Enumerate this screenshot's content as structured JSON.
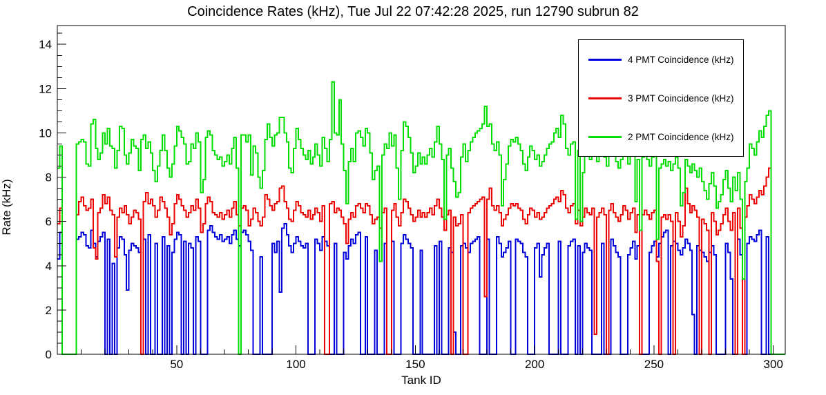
{
  "page": {
    "title": "Coincidence Rates (kHz), Tue Jul 22 07:42:28 2025, run 12790 subrun 82"
  },
  "chart_data": {
    "type": "line",
    "style": "step-histogram",
    "title": "Coincidence Rates (kHz), Tue Jul 22 07:42:28 2025, run 12790 subrun 82",
    "xlabel": "Tank ID",
    "ylabel": "Rate (kHz)",
    "xlim": [
      0,
      305
    ],
    "ylim": [
      0,
      14.85
    ],
    "x_major_ticks": [
      0,
      50,
      100,
      150,
      200,
      250,
      300
    ],
    "x_labeled_ticks": [
      50,
      100,
      150,
      200,
      250,
      300
    ],
    "x_minor_step": 10,
    "y_major_ticks": [
      0,
      2,
      4,
      6,
      8,
      10,
      12,
      14
    ],
    "y_minor_step": 0.5,
    "grid": false,
    "legend_position": "top-right",
    "frame_color": "#000000",
    "background_color": "#ffffff",
    "bin_start_x": 0,
    "bin_width": 1,
    "series": [
      {
        "name": "4 PMT Coincidence (kHz)",
        "color": "#0000dd",
        "values": [
          4.3,
          5.5,
          0,
          0,
          0,
          0,
          0,
          0,
          5.2,
          5.3,
          5.5,
          5.4,
          4.9,
          4.8,
          5.6,
          5.0,
          4.4,
          5.1,
          5.3,
          5.5,
          0,
          5.2,
          0,
          4.1,
          0,
          4.8,
          5.3,
          5.2,
          4.5,
          2.9,
          4.7,
          5.0,
          4.9,
          4.8,
          4.6,
          0,
          5.2,
          0,
          5.4,
          0,
          0,
          5.0,
          0,
          0,
          5.3,
          0,
          4.9,
          0,
          4.6,
          5.2,
          5.5,
          5.4,
          0,
          5.1,
          0,
          5.0,
          4.8,
          0,
          5.3,
          5.1,
          0,
          0,
          0,
          5.6,
          5.8,
          5.5,
          5.3,
          5.2,
          5.4,
          5.1,
          5.2,
          5.3,
          5.0,
          5.4,
          5.6,
          5.2,
          4.9,
          5.5,
          5.6,
          5.4,
          5.1,
          4.7,
          0,
          0,
          0,
          4.4,
          0,
          0,
          0,
          0,
          5.0,
          4.6,
          5.1,
          2.8,
          5.7,
          5.9,
          5.4,
          4.9,
          4.6,
          5.0,
          5.3,
          5.1,
          4.9,
          4.8,
          5.0,
          0,
          0,
          0,
          5.2,
          5.0,
          4.7,
          5.3,
          5.1,
          4.9,
          0,
          0,
          5.0,
          0,
          0,
          0,
          4.6,
          4.3,
          4.9,
          5.2,
          5.0,
          5.4,
          5.5,
          0,
          0,
          5.3,
          0,
          0,
          0,
          4.7,
          0,
          0,
          0,
          5.0,
          0,
          0,
          5.1,
          0,
          0,
          0,
          5.0,
          5.4,
          5.2,
          5.0,
          4.8,
          0,
          0,
          0,
          4.7,
          0,
          0,
          0,
          0,
          0,
          4.9,
          0,
          5.1,
          0,
          0,
          0,
          4.8,
          4.6,
          1.0,
          0,
          0,
          4.9,
          5.0,
          4.8,
          4.6,
          5.0,
          5.1,
          5.2,
          5.3,
          0,
          0,
          0,
          5.2,
          0,
          0,
          0,
          5.3,
          5.0,
          4.4,
          4.6,
          4.8,
          5.1,
          0,
          0,
          5.2,
          5.1,
          5.0,
          4.6,
          4.4,
          0,
          0,
          0,
          4.8,
          5.0,
          3.5,
          4.5,
          4.8,
          5.0,
          0,
          0,
          0,
          0,
          5.1,
          0,
          0,
          0,
          4.9,
          5.1,
          5.2,
          0,
          4.9,
          0,
          4.6,
          5.0,
          4.8,
          4.7,
          0,
          0,
          0,
          0,
          5.0,
          0,
          0,
          0,
          5.2,
          4.9,
          4.6,
          4.4,
          0,
          0,
          0,
          4.5,
          4.8,
          5.1,
          4.3,
          4.9,
          0,
          0,
          0,
          0,
          4.6,
          4.9,
          5.1,
          4.4,
          5.0,
          5.3,
          5.5,
          5.6,
          0,
          4.9,
          5.1,
          5.0,
          4.7,
          4.5,
          4.8,
          5.2,
          5.0,
          4.7,
          1.8,
          0,
          4.9,
          4.7,
          4.6,
          4.4,
          4.2,
          4.6,
          4.9,
          4.5,
          0,
          0,
          0,
          0,
          5.0,
          4.6,
          3.4,
          0,
          0,
          5.2,
          4.5,
          0,
          0,
          5.0,
          5.3,
          5.2,
          5.1,
          5.4,
          5.6,
          0,
          0,
          5.3,
          0,
          0,
          0,
          0,
          0,
          0,
          0
        ]
      },
      {
        "name": "3 PMT Coincidence (kHz)",
        "color": "#ee0000",
        "values": [
          5.9,
          6.6,
          0,
          0,
          0,
          0,
          0,
          0,
          6.3,
          6.9,
          7.1,
          6.7,
          6.5,
          6.6,
          7.0,
          4.8,
          4.3,
          6.4,
          6.6,
          7.2,
          6.8,
          7.1,
          6.5,
          6.3,
          4.4,
          6.2,
          6.6,
          6.4,
          6.7,
          6.3,
          5.9,
          6.2,
          6.5,
          6.4,
          6.1,
          0,
          6.9,
          7.3,
          6.8,
          7.0,
          6.7,
          6.2,
          6.5,
          7.1,
          6.9,
          6.6,
          6.2,
          5.4,
          5.9,
          6.8,
          7.2,
          7.0,
          6.7,
          6.5,
          6.2,
          6.4,
          6.7,
          6.5,
          7.0,
          6.6,
          5.5,
          5.9,
          6.8,
          7.1,
          6.9,
          6.4,
          6.3,
          6.2,
          6.4,
          6.1,
          6.3,
          6.5,
          6.2,
          6.6,
          6.9,
          6.3,
          5.8,
          6.6,
          6.7,
          6.5,
          5.8,
          6.1,
          6.6,
          6.4,
          6.0,
          5.8,
          6.2,
          7.2,
          7.0,
          6.7,
          6.5,
          6.8,
          6.9,
          7.5,
          7.6,
          6.9,
          6.6,
          6.1,
          6.0,
          6.5,
          6.9,
          6.7,
          6.4,
          6.3,
          6.2,
          6.5,
          6.1,
          6.3,
          6.6,
          6.4,
          6.0,
          6.7,
          0,
          0,
          6.8,
          6.9,
          6.4,
          6.6,
          6.5,
          6.2,
          5.9,
          5.0,
          6.1,
          6.4,
          6.2,
          6.7,
          6.8,
          6.6,
          6.4,
          6.8,
          6.7,
          6.3,
          5.9,
          6.1,
          6.2,
          5.7,
          6.4,
          6.6,
          0,
          0,
          6.5,
          6.8,
          6.2,
          5.8,
          6.4,
          7.0,
          6.9,
          6.6,
          6.3,
          6.0,
          6.2,
          6.5,
          6.2,
          6.4,
          6.2,
          6.4,
          6.6,
          6.3,
          6.7,
          7.0,
          6.6,
          6.2,
          5.6,
          6.3,
          6.5,
          0,
          6.2,
          5.8,
          5.9,
          6.3,
          0,
          0,
          6.4,
          6.6,
          6.7,
          6.8,
          6.9,
          7.0,
          7.1,
          2.6,
          7.0,
          7.5,
          6.7,
          6.5,
          6.7,
          6.4,
          5.8,
          6.1,
          6.3,
          6.6,
          6.8,
          6.7,
          6.8,
          6.6,
          6.5,
          6.1,
          5.9,
          6.3,
          6.6,
          6.5,
          6.2,
          6.4,
          6.1,
          6.2,
          6.4,
          6.6,
          6.7,
          6.8,
          7.0,
          7.1,
          6.9,
          7.4,
          7.2,
          6.6,
          6.4,
          6.7,
          6.8,
          5.9,
          6.5,
          5.8,
          6.2,
          6.6,
          6.4,
          6.3,
          6.6,
          0.9,
          6.2,
          6.4,
          6.6,
          6.3,
          0,
          6.5,
          6.8,
          6.4,
          6.2,
          6.0,
          6.3,
          6.7,
          6.5,
          6.1,
          6.4,
          6.6,
          5.5,
          6.3,
          0,
          6.3,
          6.5,
          6.3,
          6.1,
          6.4,
          6.5,
          4.2,
          0,
          6.2,
          6.3,
          6.1,
          6.3,
          6.0,
          0,
          6.4,
          6.0,
          5.3,
          5.8,
          7.5,
          6.8,
          6.4,
          6.7,
          6.5,
          6.2,
          0,
          6.1,
          5.9,
          5.6,
          0,
          6.4,
          6.0,
          5.4,
          5.6,
          5.9,
          6.3,
          6.6,
          6.0,
          5.6,
          6.4,
          0,
          6.6,
          5.7,
          0,
          6.2,
          6.7,
          7.2,
          7.0,
          6.8,
          7.1,
          7.4,
          7.2,
          7.6,
          8.0,
          8.4,
          0,
          0,
          0,
          0,
          0,
          0
        ]
      },
      {
        "name": "2 PMT Coincidence (kHz)",
        "color": "#00dd00",
        "values": [
          8.4,
          9.4,
          0,
          0,
          0,
          0,
          0,
          0,
          9.5,
          9.6,
          9.7,
          9.6,
          8.6,
          8.5,
          10.4,
          10.6,
          9.3,
          8.8,
          9.1,
          10.0,
          9.5,
          10.2,
          9.4,
          9.3,
          8.4,
          9.2,
          10.3,
          10.2,
          9.0,
          8.6,
          9.1,
          9.7,
          9.4,
          9.3,
          8.3,
          9.7,
          9.9,
          9.3,
          9.6,
          9.1,
          8.3,
          7.8,
          8.5,
          9.2,
          9.9,
          9.2,
          8.4,
          8.0,
          8.6,
          9.4,
          10.3,
          10.1,
          9.8,
          9.5,
          8.6,
          8.7,
          9.5,
          9.3,
          10.0,
          9.6,
          7.3,
          7.9,
          9.8,
          10.1,
          9.9,
          9.2,
          9.0,
          8.8,
          8.9,
          8.5,
          8.7,
          9.0,
          8.6,
          9.3,
          9.8,
          8.4,
          0,
          9.9,
          9.9,
          9.6,
          9.9,
          8.1,
          9.4,
          9.1,
          8.0,
          7.5,
          8.3,
          9.7,
          10.4,
          9.8,
          9.4,
          9.9,
          10.0,
          10.7,
          10.7,
          10.0,
          9.6,
          8.4,
          8.2,
          9.3,
          10.2,
          9.7,
          9.3,
          9.0,
          8.8,
          9.2,
          8.6,
          8.9,
          9.5,
          9.0,
          8.5,
          9.8,
          9.3,
          8.7,
          9.7,
          12.3,
          10.0,
          9.9,
          11.5,
          9.5,
          8.3,
          6.8,
          8.7,
          9.3,
          8.7,
          10.0,
          10.1,
          9.8,
          9.4,
          10.2,
          10.0,
          9.1,
          7.9,
          8.3,
          8.5,
          4.2,
          9.0,
          9.5,
          9.3,
          10.0,
          9.4,
          9.9,
          8.4,
          7.0,
          9.2,
          10.5,
          10.3,
          9.8,
          9.1,
          8.2,
          8.5,
          9.1,
          8.6,
          8.9,
          8.6,
          9.0,
          9.3,
          8.9,
          9.6,
          10.3,
          9.5,
          8.8,
          6.1,
          9.0,
          9.3,
          8.4,
          7.8,
          7.1,
          7.3,
          8.9,
          9.5,
          8.7,
          9.2,
          9.6,
          9.8,
          10.0,
          10.1,
          10.2,
          10.4,
          11.2,
          10.3,
          10.4,
          9.5,
          9.2,
          9.6,
          9.0,
          6.7,
          7.9,
          8.6,
          9.4,
          9.7,
          9.6,
          9.8,
          9.5,
          9.2,
          8.6,
          8.3,
          8.9,
          9.4,
          9.2,
          8.8,
          9.0,
          8.5,
          8.7,
          9.0,
          9.3,
          9.5,
          9.6,
          10.0,
          10.2,
          9.8,
          10.8,
          10.4,
          9.3,
          9.0,
          9.5,
          9.6,
          6.1,
          9.2,
          6.0,
          8.2,
          9.4,
          9.0,
          8.8,
          9.3,
          9.0,
          8.7,
          9.1,
          9.3,
          8.9,
          8.5,
          9.2,
          9.6,
          9.0,
          8.7,
          8.4,
          8.8,
          9.5,
          9.1,
          8.6,
          9.0,
          9.4,
          6.9,
          8.8,
          5.6,
          8.9,
          9.2,
          8.8,
          8.5,
          8.9,
          9.1,
          5.2,
          8.4,
          8.6,
          8.8,
          8.5,
          8.7,
          8.3,
          8.6,
          8.9,
          8.4,
          6.7,
          7.3,
          8.8,
          8.5,
          8.2,
          8.6,
          8.3,
          8.0,
          8.4,
          7.8,
          7.4,
          7.0,
          7.7,
          8.2,
          7.6,
          6.6,
          6.9,
          7.2,
          7.9,
          8.3,
          7.5,
          6.9,
          8.0,
          7.4,
          8.2,
          7.0,
          3.4,
          7.8,
          8.4,
          9.5,
          9.3,
          9.0,
          9.6,
          10.1,
          9.8,
          10.3,
          10.8,
          11.0,
          0,
          0,
          0,
          0,
          0,
          0
        ]
      }
    ]
  }
}
